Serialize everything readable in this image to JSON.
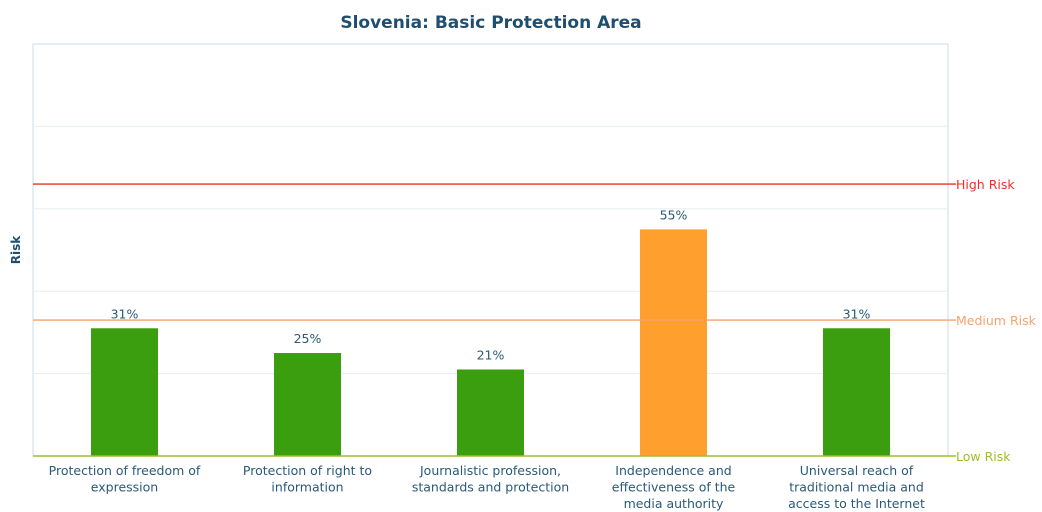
{
  "chart_data": {
    "type": "bar",
    "title": "Slovenia: Basic Protection Area",
    "ylabel": "Risk",
    "xlabel": "",
    "ylim": [
      0,
      100
    ],
    "grid": true,
    "categories": [
      "Protection of freedom of expression",
      "Protection of right to information",
      "Journalistic profession, standards and protection",
      "Independence and effectiveness of the media authority",
      "Universal reach of traditional media and access to the Internet"
    ],
    "category_lines": [
      [
        "Protection of freedom of",
        "expression"
      ],
      [
        "Protection of right to",
        "information"
      ],
      [
        "Journalistic profession,",
        "standards and protection"
      ],
      [
        "Independence and",
        "effectiveness of the",
        "media authority"
      ],
      [
        "Universal reach of",
        "traditional media and",
        "access to the Internet"
      ]
    ],
    "values": [
      31,
      25,
      21,
      55,
      31
    ],
    "value_labels": [
      "31%",
      "25%",
      "21%",
      "55%",
      "31%"
    ],
    "bar_colors": [
      "#3a9e0f",
      "#3a9e0f",
      "#3a9e0f",
      "#ff9f2e",
      "#3a9e0f"
    ],
    "reference_lines": [
      {
        "label": "High Risk",
        "value": 66,
        "color": "#e8312a"
      },
      {
        "label": "Medium Risk",
        "value": 33,
        "color": "#f4a36b"
      },
      {
        "label": "Low Risk",
        "value": 0,
        "color": "#9fbd2c"
      }
    ]
  }
}
